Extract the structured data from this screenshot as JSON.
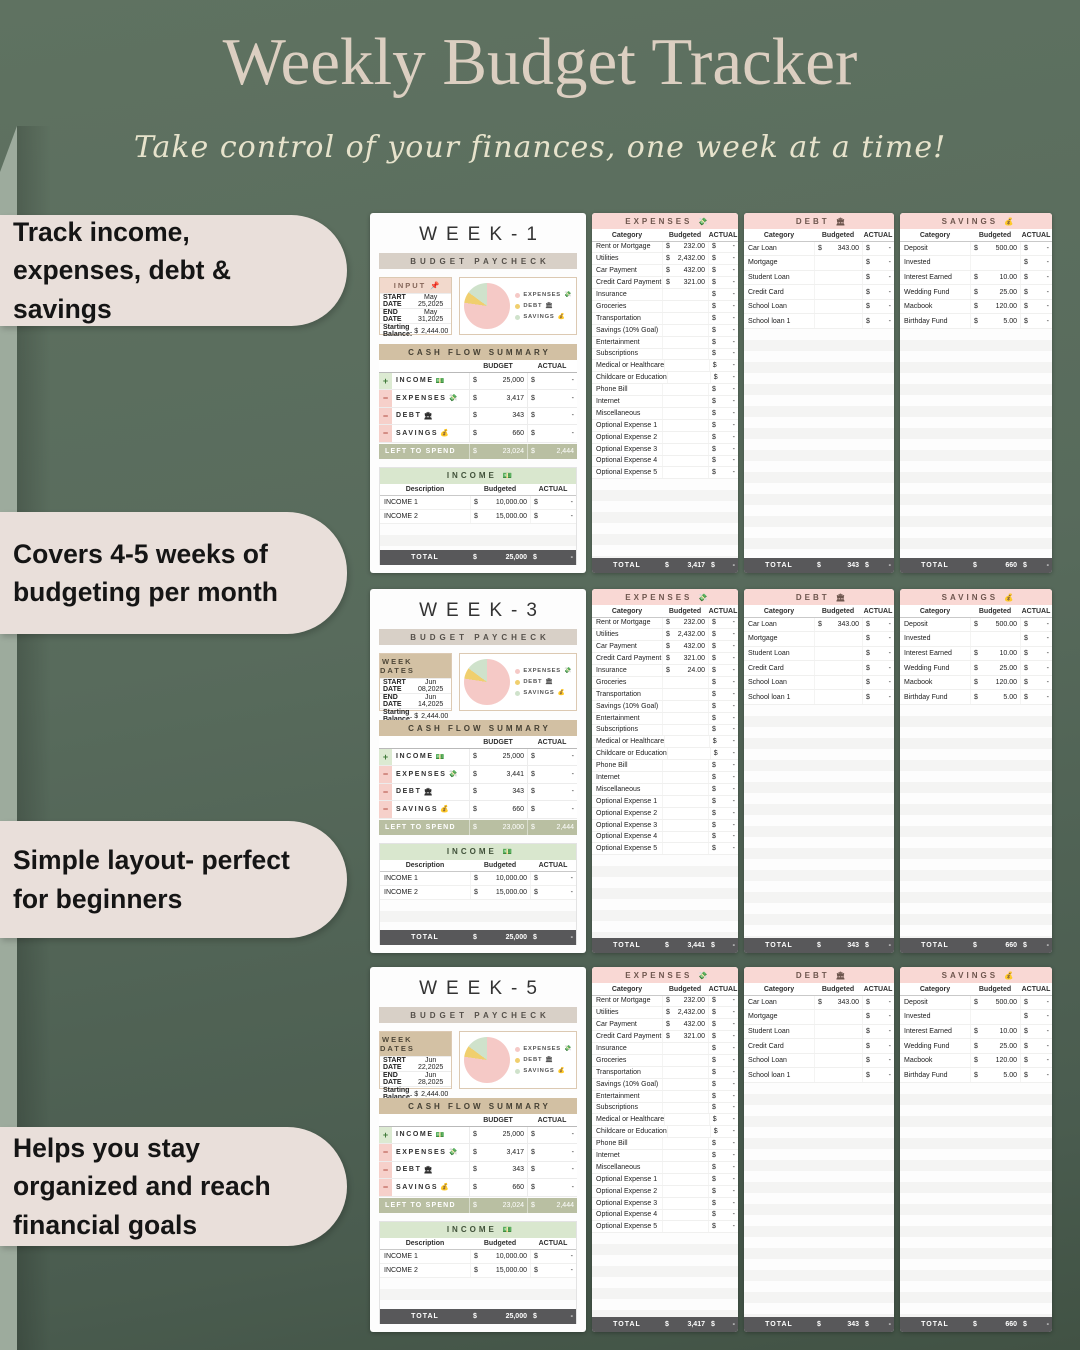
{
  "header": {
    "title": "Weekly Budget Tracker",
    "subtitle": "Take control of your finances, one week at a time!"
  },
  "callouts": [
    "Track income, expenses, debt & savings",
    "Covers 4-5 weeks of budgeting per month",
    "Simple layout- perfect for beginners",
    "Helps you stay organized and reach financial goals"
  ],
  "ui": {
    "budget_paycheck": "BUDGET PAYCHECK",
    "start_date_label": "START DATE",
    "end_date_label": "END DATE",
    "starting_balance_label": "Starting Balance:",
    "cash_flow_title": "CASH FLOW SUMMARY",
    "budget_col": "BUDGET",
    "actual_col": "ACTUAL",
    "left_to_spend_label": "LEFT TO SPEND",
    "income_title": "INCOME",
    "expenses_title": "EXPENSES",
    "debt_title": "DEBT",
    "savings_title": "SAVINGS",
    "description_col": "Description",
    "budgeted_col": "Budgeted",
    "category_col": "Category",
    "total_label": "TOTAL",
    "currency": "$",
    "empty_value": "-",
    "plus": "+",
    "minus": "−",
    "icons": {
      "income": "💵",
      "expenses": "💸",
      "debt": "🏛",
      "savings": "💰",
      "input_pin": "📌"
    }
  },
  "colors": {
    "background_green": "#586b5c",
    "bubble": "#e9dfda",
    "header_tan": "#d2c0a3",
    "header_pink": "#f9d8d4",
    "header_green": "#d9e7ce",
    "left_to_spend_row": "#b9bfa2",
    "total_row": "#58585a",
    "pie_expenses": "#f5c9c6",
    "pie_debt": "#f0cf6e",
    "pie_savings": "#cfe2cb"
  },
  "legend": [
    {
      "name": "EXPENSES",
      "icon": "💸",
      "color": "#f5c9c6"
    },
    {
      "name": "DEBT",
      "icon": "🏛",
      "color": "#f0cf6e"
    },
    {
      "name": "SAVINGS",
      "icon": "💰",
      "color": "#cfe2cb"
    }
  ],
  "expense_categories": [
    "Rent or Mortgage",
    "Utilities",
    "Car Payment",
    "Credit Card Payment",
    "Insurance",
    "Groceries",
    "Transportation",
    "Savings (10% Goal)",
    "Entertainment",
    "Subscriptions",
    "Medical or Healthcare",
    "Childcare or Education",
    "Phone Bill",
    "Internet",
    "Miscellaneous",
    "Optional Expense 1",
    "Optional Expense 2",
    "Optional Expense 3",
    "Optional Expense 4",
    "Optional Expense 5"
  ],
  "debt_categories": [
    "Car Loan",
    "Mortgage",
    "Student Loan",
    "Credit Card",
    "School Loan",
    "School loan 1"
  ],
  "savings_categories": [
    "Deposit",
    "Invested",
    "Interest Earned",
    "Wedding Fund",
    "Macbook",
    "Birthday Fund"
  ],
  "chart_data": {
    "type": "pie",
    "note": "cash flow split shown in each week panel",
    "categories": [
      "EXPENSES",
      "DEBT",
      "SAVINGS"
    ],
    "values_week1": [
      3417,
      343,
      660
    ],
    "values_week3": [
      3441,
      343,
      660
    ],
    "values_week5": [
      3417,
      343,
      660
    ],
    "legend_position": "right"
  },
  "weeks": [
    {
      "name": "WEEK-1",
      "info_header": {
        "text": "INPUT",
        "icon": "📌",
        "variant": "pink"
      },
      "start_date": "May 25,2025",
      "end_date": "May 31,2025",
      "starting_balance": "2,444.00",
      "pie": [
        77.3,
        7.8,
        14.9
      ],
      "cash_flow": [
        {
          "sign": "plus",
          "label": "INCOME",
          "icon": "💵",
          "budget": "25,000",
          "actual": "-"
        },
        {
          "sign": "minus",
          "label": "EXPENSES",
          "icon": "💸",
          "budget": "3,417",
          "actual": "-"
        },
        {
          "sign": "minus",
          "label": "DEBT",
          "icon": "🏛",
          "budget": "343",
          "actual": "-"
        },
        {
          "sign": "minus",
          "label": "SAVINGS",
          "icon": "💰",
          "budget": "660",
          "actual": "-"
        }
      ],
      "left_to_spend": {
        "budget": "23,024",
        "actual": "2,444"
      },
      "income_rows": [
        {
          "label": "INCOME 1",
          "budgeted": "10,000.00",
          "actual": "-"
        },
        {
          "label": "INCOME 2",
          "budgeted": "15,000.00",
          "actual": "-"
        }
      ],
      "income_total": {
        "budgeted": "25,000",
        "actual": "-"
      },
      "expense_values": [
        "232.00",
        "2,432.00",
        "432.00",
        "321.00",
        "",
        "",
        "",
        "",
        "",
        "",
        "",
        "",
        "",
        "",
        "",
        "",
        "",
        "",
        "",
        ""
      ],
      "expenses_total": {
        "budgeted": "3,417",
        "actual": "-"
      },
      "debt_values": [
        "343.00",
        "",
        "",
        "",
        "",
        ""
      ],
      "debt_total": {
        "budgeted": "343",
        "actual": "-"
      },
      "savings_values": [
        "500.00",
        "",
        "10.00",
        "25.00",
        "120.00",
        "5.00"
      ],
      "savings_total": {
        "budgeted": "660",
        "actual": "-"
      }
    },
    {
      "name": "WEEK-3",
      "info_header": {
        "text": "WEEK DATES",
        "icon": "",
        "variant": "tan"
      },
      "start_date": "Jun 08,2025",
      "end_date": "Jun 14,2025",
      "starting_balance": "2,444.00",
      "pie": [
        77.4,
        7.7,
        14.9
      ],
      "cash_flow": [
        {
          "sign": "plus",
          "label": "INCOME",
          "icon": "💵",
          "budget": "25,000",
          "actual": "-"
        },
        {
          "sign": "minus",
          "label": "EXPENSES",
          "icon": "💸",
          "budget": "3,441",
          "actual": "-"
        },
        {
          "sign": "minus",
          "label": "DEBT",
          "icon": "🏛",
          "budget": "343",
          "actual": "-"
        },
        {
          "sign": "minus",
          "label": "SAVINGS",
          "icon": "💰",
          "budget": "660",
          "actual": "-"
        }
      ],
      "left_to_spend": {
        "budget": "23,000",
        "actual": "2,444"
      },
      "income_rows": [
        {
          "label": "INCOME 1",
          "budgeted": "10,000.00",
          "actual": "-"
        },
        {
          "label": "INCOME 2",
          "budgeted": "15,000.00",
          "actual": "-"
        }
      ],
      "income_total": {
        "budgeted": "25,000",
        "actual": "-"
      },
      "expense_values": [
        "232.00",
        "2,432.00",
        "432.00",
        "321.00",
        "24.00",
        "",
        "",
        "",
        "",
        "",
        "",
        "",
        "",
        "",
        "",
        "",
        "",
        "",
        "",
        ""
      ],
      "expenses_total": {
        "budgeted": "3,441",
        "actual": "-"
      },
      "debt_values": [
        "343.00",
        "",
        "",
        "",
        "",
        ""
      ],
      "debt_total": {
        "budgeted": "343",
        "actual": "-"
      },
      "savings_values": [
        "500.00",
        "",
        "10.00",
        "25.00",
        "120.00",
        "5.00"
      ],
      "savings_total": {
        "budgeted": "660",
        "actual": "-"
      }
    },
    {
      "name": "WEEK-5",
      "info_header": {
        "text": "WEEK DATES",
        "icon": "",
        "variant": "tan"
      },
      "start_date": "Jun 22,2025",
      "end_date": "Jun 28,2025",
      "starting_balance": "2,444.00",
      "pie": [
        77.3,
        7.8,
        14.9
      ],
      "cash_flow": [
        {
          "sign": "plus",
          "label": "INCOME",
          "icon": "💵",
          "budget": "25,000",
          "actual": "-"
        },
        {
          "sign": "minus",
          "label": "EXPENSES",
          "icon": "💸",
          "budget": "3,417",
          "actual": "-"
        },
        {
          "sign": "minus",
          "label": "DEBT",
          "icon": "🏛",
          "budget": "343",
          "actual": "-"
        },
        {
          "sign": "minus",
          "label": "SAVINGS",
          "icon": "💰",
          "budget": "660",
          "actual": "-"
        }
      ],
      "left_to_spend": {
        "budget": "23,024",
        "actual": "2,444"
      },
      "income_rows": [
        {
          "label": "INCOME 1",
          "budgeted": "10,000.00",
          "actual": "-"
        },
        {
          "label": "INCOME 2",
          "budgeted": "15,000.00",
          "actual": "-"
        }
      ],
      "income_total": {
        "budgeted": "25,000",
        "actual": "-"
      },
      "expense_values": [
        "232.00",
        "2,432.00",
        "432.00",
        "321.00",
        "",
        "",
        "",
        "",
        "",
        "",
        "",
        "",
        "",
        "",
        "",
        "",
        "",
        "",
        "",
        ""
      ],
      "expenses_total": {
        "budgeted": "3,417",
        "actual": "-"
      },
      "debt_values": [
        "343.00",
        "",
        "",
        "",
        "",
        ""
      ],
      "debt_total": {
        "budgeted": "343",
        "actual": "-"
      },
      "savings_values": [
        "500.00",
        "",
        "10.00",
        "25.00",
        "120.00",
        "5.00"
      ],
      "savings_total": {
        "budgeted": "660",
        "actual": "-"
      }
    }
  ]
}
